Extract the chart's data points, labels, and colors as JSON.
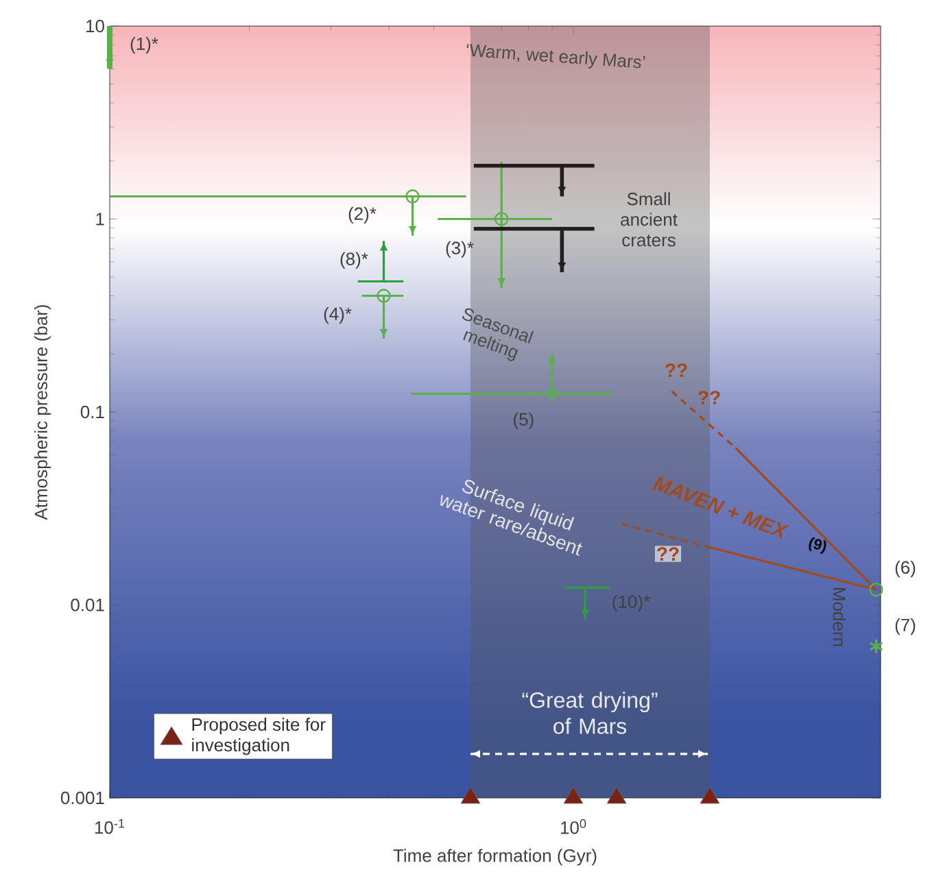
{
  "chart_data": {
    "type": "line",
    "xlabel": "Time after formation (Gyr)",
    "ylabel": "Atmospheric pressure (bar)",
    "log": "xy",
    "xlim": [
      0.1,
      4.6
    ],
    "ylim": [
      0.001,
      10
    ],
    "xticks": [
      {
        "value": 0.1,
        "label": "10$^{-1}$"
      },
      {
        "value": 1,
        "label": "10$^{0}$"
      }
    ],
    "yticks": [
      0.001,
      0.01,
      0.1,
      1,
      10
    ],
    "legend": "bottom left",
    "bands": [
      {
        "axis": "x",
        "from": 0.6,
        "to": 1.97,
        "color": "#555555"
      }
    ],
    "series": [
      {
        "x": [
          0.1,
          0.1
        ],
        "values": [
          10,
          6.0
        ],
        "color": "#5bb04a"
      },
      {
        "x": [
          0.1,
          0.587
        ],
        "values": [
          1.31,
          1.31
        ],
        "color": "#5bb04a"
      },
      {
        "type": "scatter",
        "x": [
          0.45
        ],
        "values": [
          1.31
        ],
        "color": "#5bb04a",
        "marker": "circle"
      },
      {
        "x": [
          0.45,
          0.45
        ],
        "values": [
          1.31,
          0.82
        ],
        "color": "#5bb04a"
      },
      {
        "x": [
          0.51,
          0.9
        ],
        "values": [
          1.0,
          1.0
        ],
        "color": "#5bb04a"
      },
      {
        "type": "scatter",
        "x": [
          0.7
        ],
        "values": [
          1.0
        ],
        "color": "#5bb04a",
        "marker": "circle"
      },
      {
        "x": [
          0.7,
          0.7
        ],
        "values": [
          1.98,
          0.44
        ],
        "color": "#5bb04a"
      },
      {
        "x": [
          0.61,
          1.11
        ],
        "values": [
          1.89,
          1.89
        ],
        "color": "#231f20"
      },
      {
        "x": [
          0.945,
          0.945
        ],
        "values": [
          1.89,
          1.31
        ],
        "color": "#231f20"
      },
      {
        "x": [
          0.61,
          1.11
        ],
        "values": [
          0.89,
          0.89
        ],
        "color": "#231f20"
      },
      {
        "x": [
          0.945,
          0.945
        ],
        "values": [
          0.89,
          0.53
        ],
        "color": "#231f20"
      },
      {
        "x": [
          0.343,
          0.43
        ],
        "values": [
          0.475,
          0.475
        ],
        "color": "#2e9e3c"
      },
      {
        "x": [
          0.39,
          0.39
        ],
        "values": [
          0.475,
          0.77
        ],
        "color": "#2e9e3c"
      },
      {
        "x": [
          0.35,
          0.43
        ],
        "values": [
          0.4,
          0.4
        ],
        "color": "#5bb04a"
      },
      {
        "type": "scatter",
        "x": [
          0.39
        ],
        "values": [
          0.4
        ],
        "color": "#5bb04a",
        "marker": "circle"
      },
      {
        "x": [
          0.39,
          0.39
        ],
        "values": [
          0.4,
          0.24
        ],
        "color": "#5bb04a"
      },
      {
        "x": [
          0.447,
          1.21
        ],
        "values": [
          0.124,
          0.124
        ],
        "color": "#5bb04a"
      },
      {
        "type": "scatter",
        "x": [
          0.9
        ],
        "values": [
          0.124
        ],
        "color": "#5bb04a",
        "marker": "diamond"
      },
      {
        "x": [
          0.9,
          0.9
        ],
        "values": [
          0.124,
          0.2
        ],
        "color": "#5bb04a"
      },
      {
        "x": [
          0.96,
          1.2
        ],
        "values": [
          0.0123,
          0.0123
        ],
        "color": "#2e9e3c"
      },
      {
        "x": [
          1.06,
          1.06
        ],
        "values": [
          0.0123,
          0.0084
        ],
        "color": "#2e9e3c"
      },
      {
        "type": "scatter",
        "x": [
          4.5
        ],
        "values": [
          0.012
        ],
        "color": "#5bb04a",
        "marker": "circle"
      },
      {
        "type": "scatter",
        "x": [
          4.5
        ],
        "values": [
          0.0061
        ],
        "color": "#5bb04a",
        "marker": "cross"
      },
      {
        "x": [
          2.24,
          4.5
        ],
        "values": [
          0.065,
          0.012
        ],
        "color": "#a24a1c"
      },
      {
        "x": [
          1.63,
          2.24
        ],
        "values": [
          0.128,
          0.065
        ],
        "color": "#a24a1c",
        "line_style": "dashed"
      },
      {
        "x": [
          1.95,
          4.5
        ],
        "values": [
          0.02,
          0.012
        ],
        "color": "#a24a1c"
      },
      {
        "x": [
          1.27,
          1.95
        ],
        "values": [
          0.0263,
          0.02
        ],
        "color": "#a24a1c",
        "line_style": "dashed"
      },
      {
        "x": [
          0.6,
          1.95
        ],
        "values": [
          0.00169,
          0.00169
        ],
        "color": "#ffffff",
        "line_style": "dashed"
      },
      {
        "type": "scatter",
        "name": "Proposed site for investigation",
        "x": [
          0.6,
          1.0,
          1.24,
          1.97
        ],
        "values": [
          0.001,
          0.001,
          0.001,
          0.001
        ],
        "color": "#7a2214",
        "marker": "triangle"
      }
    ],
    "annotations": [
      "(1)*",
      "‘Warm, wet early Mars’",
      "(2)*",
      "(3)*",
      "(8)*",
      "(4)*",
      "Small ancient craters",
      "Seasonal melting",
      "(5)",
      "??",
      "??",
      "??",
      "Surface liquid water rare/absent",
      "MAVEN + MEX",
      "(9)",
      "(10)*",
      "(6)",
      "(7)",
      "Modern",
      "“Great drying” of Mars"
    ]
  }
}
